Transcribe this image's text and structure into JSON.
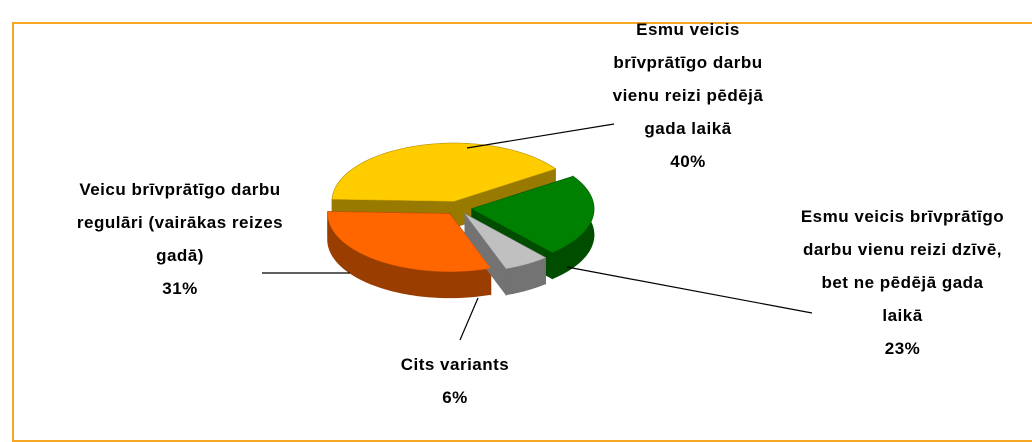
{
  "chart_data": {
    "type": "pie3d",
    "categories": [
      "Esmu veicis brīvprātīgo darbu vienu reizi pēdējā gada laikā",
      "Esmu veicis brīvprātīgo darbu vienu reizi dzīvē, bet ne pēdējā gada laikā",
      "Cits variants",
      "Veicu brīvprātīgo darbu regulāri (vairākas reizes gadā)"
    ],
    "values": [
      40,
      23,
      6,
      31
    ],
    "value_labels": [
      "40%",
      "23%",
      "6%",
      "31%"
    ],
    "colors": [
      "#FFCC00",
      "#008000",
      "#C0C0C0",
      "#FF6600"
    ]
  }
}
